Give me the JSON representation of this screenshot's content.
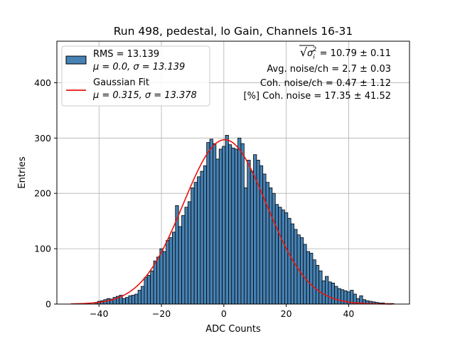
{
  "chart_data": {
    "type": "bar",
    "title": "Run 498, pedestal, lo Gain, Channels 16-31",
    "xlabel": "ADC Counts",
    "ylabel": "Entries",
    "xlim": [
      -53.5,
      59.5
    ],
    "ylim": [
      0,
      475
    ],
    "xticks": [
      -40,
      -20,
      0,
      20,
      40
    ],
    "yticks": [
      0,
      100,
      200,
      300,
      400
    ],
    "xtick_labels": [
      "−40",
      "−20",
      "0",
      "20",
      "40"
    ],
    "ytick_labels": [
      "0",
      "100",
      "200",
      "300",
      "400"
    ],
    "grid": true,
    "bin_width": 1,
    "bin_centers": [
      -41,
      -40,
      -39,
      -38,
      -37,
      -36,
      -35,
      -34,
      -33,
      -32,
      -31,
      -30,
      -29,
      -28,
      -27,
      -26,
      -25,
      -24,
      -23,
      -22,
      -21,
      -20,
      -19,
      -18,
      -17,
      -16,
      -15,
      -14,
      -13,
      -12,
      -11,
      -10,
      -9,
      -8,
      -7,
      -6,
      -5,
      -4,
      -3,
      -2,
      -1,
      0,
      1,
      2,
      3,
      4,
      5,
      6,
      7,
      8,
      9,
      10,
      11,
      12,
      13,
      14,
      15,
      16,
      17,
      18,
      19,
      20,
      21,
      22,
      23,
      24,
      25,
      26,
      27,
      28,
      29,
      30,
      31,
      32,
      33,
      34,
      35,
      36,
      37,
      38,
      39,
      40,
      41,
      42,
      43,
      44,
      45,
      46,
      47,
      48,
      49,
      50,
      51,
      52,
      53,
      54
    ],
    "values": [
      3,
      5,
      6,
      8,
      10,
      9,
      12,
      14,
      16,
      10,
      12,
      15,
      16,
      18,
      25,
      32,
      48,
      52,
      60,
      78,
      85,
      100,
      95,
      115,
      120,
      130,
      178,
      140,
      160,
      175,
      185,
      210,
      220,
      230,
      240,
      250,
      292,
      298,
      290,
      262,
      280,
      285,
      305,
      288,
      282,
      280,
      300,
      290,
      210,
      260,
      240,
      270,
      260,
      250,
      235,
      220,
      210,
      200,
      180,
      175,
      170,
      165,
      155,
      145,
      135,
      125,
      120,
      108,
      95,
      92,
      80,
      70,
      60,
      42,
      50,
      40,
      38,
      32,
      28,
      26,
      24,
      22,
      25,
      18,
      10,
      15,
      8,
      6,
      5,
      4,
      3,
      2,
      2,
      1,
      1,
      1
    ],
    "series": [
      {
        "name": "RMS = 13.139",
        "sub": "μ = 0.0, σ = 13.139",
        "type": "histogram",
        "color": "#4682b4",
        "edge": "#000000"
      },
      {
        "name": "Gaussian Fit",
        "sub": "μ = 0.315, σ = 13.378",
        "type": "line",
        "color": "#e8150f",
        "mu": 0.315,
        "sigma": 13.378,
        "amplitude": 297,
        "range": [
          -49,
          54
        ]
      }
    ],
    "legend_position": "top-left",
    "annotations": {
      "sigma_lead": "√",
      "sigma_symbol": "σ",
      "sigma_sub": "i",
      "sigma_sup": "2",
      "sigma_value": " = 10.79 ± 0.11",
      "avg_noise": "Avg. noise/ch = 2.7 ± 0.03",
      "coh_noise": "Coh. noise/ch = 0.47 ± 1.12",
      "pct_coh_noise": "[%] Coh. noise = 17.35 ± 41.52"
    }
  }
}
